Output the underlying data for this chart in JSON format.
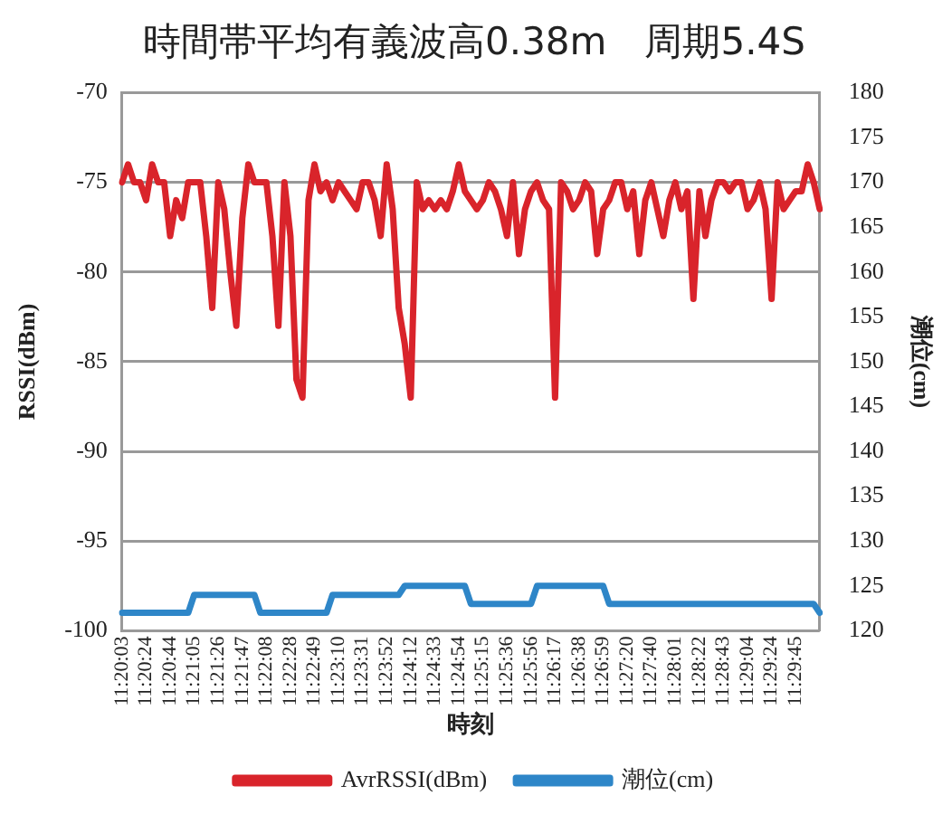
{
  "chart_data": {
    "type": "line",
    "title": "時間帯平均有義波高0.38m　周期5.4S",
    "xlabel": "時刻",
    "ylabel": "RSSI(dBm)",
    "y2label": "潮位(cm)",
    "categories": [
      "11:20:03",
      null,
      null,
      null,
      "11:20:24",
      null,
      null,
      null,
      "11:20:44",
      null,
      null,
      null,
      "11:21:05",
      null,
      null,
      null,
      "11:21:26",
      null,
      null,
      null,
      "11:21:47",
      null,
      null,
      null,
      "11:22:08",
      null,
      null,
      null,
      "11:22:28",
      null,
      null,
      null,
      "11:22:49",
      null,
      null,
      null,
      "11:23:10",
      null,
      null,
      null,
      "11:23:31",
      null,
      null,
      null,
      "11:23:52",
      null,
      null,
      null,
      "11:24:12",
      null,
      null,
      null,
      "11:24:33",
      null,
      null,
      null,
      "11:24:54",
      null,
      null,
      null,
      "11:25:15",
      null,
      null,
      null,
      "11:25:36",
      null,
      null,
      null,
      "11:25:56",
      null,
      null,
      null,
      "11:26:17",
      null,
      null,
      null,
      "11:26:38",
      null,
      null,
      null,
      "11:26:59",
      null,
      null,
      null,
      "11:27:20",
      null,
      null,
      null,
      "11:27:40",
      null,
      null,
      null,
      "11:28:01",
      null,
      null,
      null,
      "11:28:22",
      null,
      null,
      null,
      "11:28:43",
      null,
      null,
      null,
      "11:29:04",
      null,
      null,
      null,
      "11:29:24",
      null,
      null,
      null,
      "11:29:45",
      null,
      null,
      null,
      null
    ],
    "series": [
      {
        "name": "AvrRSSI(dBm)",
        "color": "#d9242b",
        "values": [
          -75,
          -74,
          -75,
          -75,
          -76,
          -74,
          -75,
          -75,
          -78,
          -76,
          -77,
          -75,
          -75,
          -75,
          -78,
          -82,
          -75,
          -76.5,
          -80,
          -83,
          -77,
          -74,
          -75,
          -75,
          -75,
          -78,
          -83,
          -75,
          -78,
          -86,
          -87,
          -76,
          -74,
          -75.5,
          -75,
          -76,
          -75,
          -75.5,
          -76,
          -76.5,
          -75,
          -75,
          -76,
          -78,
          -74,
          -76.5,
          -82,
          -84,
          -87,
          -75,
          -76.5,
          -76,
          -76.5,
          -76,
          -76.5,
          -75.5,
          -74,
          -75.5,
          -76,
          -76.5,
          -76,
          -75,
          -75.5,
          -76.5,
          -78,
          -75,
          -79,
          -76.5,
          -75.5,
          -75,
          -76,
          -76.5,
          -87,
          -75,
          -75.5,
          -76.5,
          -76,
          -75,
          -75.5,
          -79,
          -76.5,
          -76,
          -75,
          -75,
          -76.5,
          -75.5,
          -79,
          -76,
          -75,
          -76.5,
          -78,
          -76,
          -75,
          -76.5,
          -75.5,
          -81.5,
          -75.5,
          -78,
          -76,
          -75,
          -75,
          -75.5,
          -75,
          -75,
          -76.5,
          -76,
          -75,
          -76.5,
          -81.5,
          -75,
          -76.5,
          -76,
          -75.5,
          -75.5,
          -74,
          -75,
          -76.5
        ]
      },
      {
        "name": "潮位(cm)",
        "color": "#2e86c8",
        "axis": "y2",
        "values": [
          122,
          122,
          122,
          122,
          122,
          122,
          122,
          122,
          122,
          122,
          122,
          122,
          124,
          124,
          124,
          124,
          124,
          124,
          124,
          124,
          124,
          124,
          124,
          122,
          122,
          122,
          122,
          122,
          122,
          122,
          122,
          122,
          122,
          122,
          122,
          124,
          124,
          124,
          124,
          124,
          124,
          124,
          124,
          124,
          124,
          124,
          124,
          125,
          125,
          125,
          125,
          125,
          125,
          125,
          125,
          125,
          125,
          125,
          123,
          123,
          123,
          123,
          123,
          123,
          123,
          123,
          123,
          123,
          123,
          125,
          125,
          125,
          125,
          125,
          125,
          125,
          125,
          125,
          125,
          125,
          125,
          123,
          123,
          123,
          123,
          123,
          123,
          123,
          123,
          123,
          123,
          123,
          123,
          123,
          123,
          123,
          123,
          123,
          123,
          123,
          123,
          123,
          123,
          123,
          123,
          123,
          123,
          123,
          123,
          123,
          123,
          123,
          123,
          123,
          123,
          123,
          122
        ]
      }
    ],
    "ylim": [
      -100,
      -70
    ],
    "yticks": [
      -100,
      -95,
      -90,
      -85,
      -80,
      -75,
      -70
    ],
    "y2lim": [
      120,
      180
    ],
    "y2ticks": [
      120,
      125,
      130,
      135,
      140,
      145,
      150,
      155,
      160,
      165,
      170,
      175,
      180
    ],
    "grid": "y",
    "legend": "bottom"
  }
}
